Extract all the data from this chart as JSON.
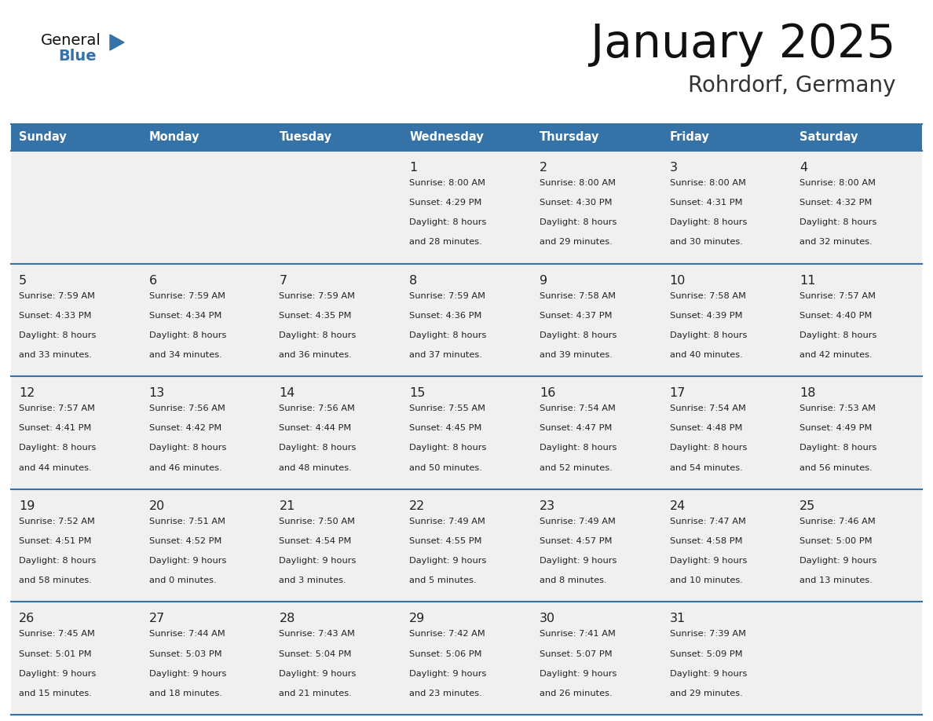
{
  "title": "January 2025",
  "subtitle": "Rohrdorf, Germany",
  "days_of_week": [
    "Sunday",
    "Monday",
    "Tuesday",
    "Wednesday",
    "Thursday",
    "Friday",
    "Saturday"
  ],
  "header_bg": "#3572a8",
  "header_text": "#ffffff",
  "cell_bg": "#f0f0f0",
  "row_line_color": "#3572a8",
  "title_color": "#111111",
  "subtitle_color": "#333333",
  "text_color": "#222222",
  "calendar_data": [
    [
      null,
      null,
      null,
      {
        "day": 1,
        "sunrise": "8:00 AM",
        "sunset": "4:29 PM",
        "daylight": "8 hours",
        "daylight2": "and 28 minutes."
      },
      {
        "day": 2,
        "sunrise": "8:00 AM",
        "sunset": "4:30 PM",
        "daylight": "8 hours",
        "daylight2": "and 29 minutes."
      },
      {
        "day": 3,
        "sunrise": "8:00 AM",
        "sunset": "4:31 PM",
        "daylight": "8 hours",
        "daylight2": "and 30 minutes."
      },
      {
        "day": 4,
        "sunrise": "8:00 AM",
        "sunset": "4:32 PM",
        "daylight": "8 hours",
        "daylight2": "and 32 minutes."
      }
    ],
    [
      {
        "day": 5,
        "sunrise": "7:59 AM",
        "sunset": "4:33 PM",
        "daylight": "8 hours",
        "daylight2": "and 33 minutes."
      },
      {
        "day": 6,
        "sunrise": "7:59 AM",
        "sunset": "4:34 PM",
        "daylight": "8 hours",
        "daylight2": "and 34 minutes."
      },
      {
        "day": 7,
        "sunrise": "7:59 AM",
        "sunset": "4:35 PM",
        "daylight": "8 hours",
        "daylight2": "and 36 minutes."
      },
      {
        "day": 8,
        "sunrise": "7:59 AM",
        "sunset": "4:36 PM",
        "daylight": "8 hours",
        "daylight2": "and 37 minutes."
      },
      {
        "day": 9,
        "sunrise": "7:58 AM",
        "sunset": "4:37 PM",
        "daylight": "8 hours",
        "daylight2": "and 39 minutes."
      },
      {
        "day": 10,
        "sunrise": "7:58 AM",
        "sunset": "4:39 PM",
        "daylight": "8 hours",
        "daylight2": "and 40 minutes."
      },
      {
        "day": 11,
        "sunrise": "7:57 AM",
        "sunset": "4:40 PM",
        "daylight": "8 hours",
        "daylight2": "and 42 minutes."
      }
    ],
    [
      {
        "day": 12,
        "sunrise": "7:57 AM",
        "sunset": "4:41 PM",
        "daylight": "8 hours",
        "daylight2": "and 44 minutes."
      },
      {
        "day": 13,
        "sunrise": "7:56 AM",
        "sunset": "4:42 PM",
        "daylight": "8 hours",
        "daylight2": "and 46 minutes."
      },
      {
        "day": 14,
        "sunrise": "7:56 AM",
        "sunset": "4:44 PM",
        "daylight": "8 hours",
        "daylight2": "and 48 minutes."
      },
      {
        "day": 15,
        "sunrise": "7:55 AM",
        "sunset": "4:45 PM",
        "daylight": "8 hours",
        "daylight2": "and 50 minutes."
      },
      {
        "day": 16,
        "sunrise": "7:54 AM",
        "sunset": "4:47 PM",
        "daylight": "8 hours",
        "daylight2": "and 52 minutes."
      },
      {
        "day": 17,
        "sunrise": "7:54 AM",
        "sunset": "4:48 PM",
        "daylight": "8 hours",
        "daylight2": "and 54 minutes."
      },
      {
        "day": 18,
        "sunrise": "7:53 AM",
        "sunset": "4:49 PM",
        "daylight": "8 hours",
        "daylight2": "and 56 minutes."
      }
    ],
    [
      {
        "day": 19,
        "sunrise": "7:52 AM",
        "sunset": "4:51 PM",
        "daylight": "8 hours",
        "daylight2": "and 58 minutes."
      },
      {
        "day": 20,
        "sunrise": "7:51 AM",
        "sunset": "4:52 PM",
        "daylight": "9 hours",
        "daylight2": "and 0 minutes."
      },
      {
        "day": 21,
        "sunrise": "7:50 AM",
        "sunset": "4:54 PM",
        "daylight": "9 hours",
        "daylight2": "and 3 minutes."
      },
      {
        "day": 22,
        "sunrise": "7:49 AM",
        "sunset": "4:55 PM",
        "daylight": "9 hours",
        "daylight2": "and 5 minutes."
      },
      {
        "day": 23,
        "sunrise": "7:49 AM",
        "sunset": "4:57 PM",
        "daylight": "9 hours",
        "daylight2": "and 8 minutes."
      },
      {
        "day": 24,
        "sunrise": "7:47 AM",
        "sunset": "4:58 PM",
        "daylight": "9 hours",
        "daylight2": "and 10 minutes."
      },
      {
        "day": 25,
        "sunrise": "7:46 AM",
        "sunset": "5:00 PM",
        "daylight": "9 hours",
        "daylight2": "and 13 minutes."
      }
    ],
    [
      {
        "day": 26,
        "sunrise": "7:45 AM",
        "sunset": "5:01 PM",
        "daylight": "9 hours",
        "daylight2": "and 15 minutes."
      },
      {
        "day": 27,
        "sunrise": "7:44 AM",
        "sunset": "5:03 PM",
        "daylight": "9 hours",
        "daylight2": "and 18 minutes."
      },
      {
        "day": 28,
        "sunrise": "7:43 AM",
        "sunset": "5:04 PM",
        "daylight": "9 hours",
        "daylight2": "and 21 minutes."
      },
      {
        "day": 29,
        "sunrise": "7:42 AM",
        "sunset": "5:06 PM",
        "daylight": "9 hours",
        "daylight2": "and 23 minutes."
      },
      {
        "day": 30,
        "sunrise": "7:41 AM",
        "sunset": "5:07 PM",
        "daylight": "9 hours",
        "daylight2": "and 26 minutes."
      },
      {
        "day": 31,
        "sunrise": "7:39 AM",
        "sunset": "5:09 PM",
        "daylight": "9 hours",
        "daylight2": "and 29 minutes."
      },
      null
    ]
  ],
  "fig_width": 11.88,
  "fig_height": 9.18,
  "dpi": 100
}
